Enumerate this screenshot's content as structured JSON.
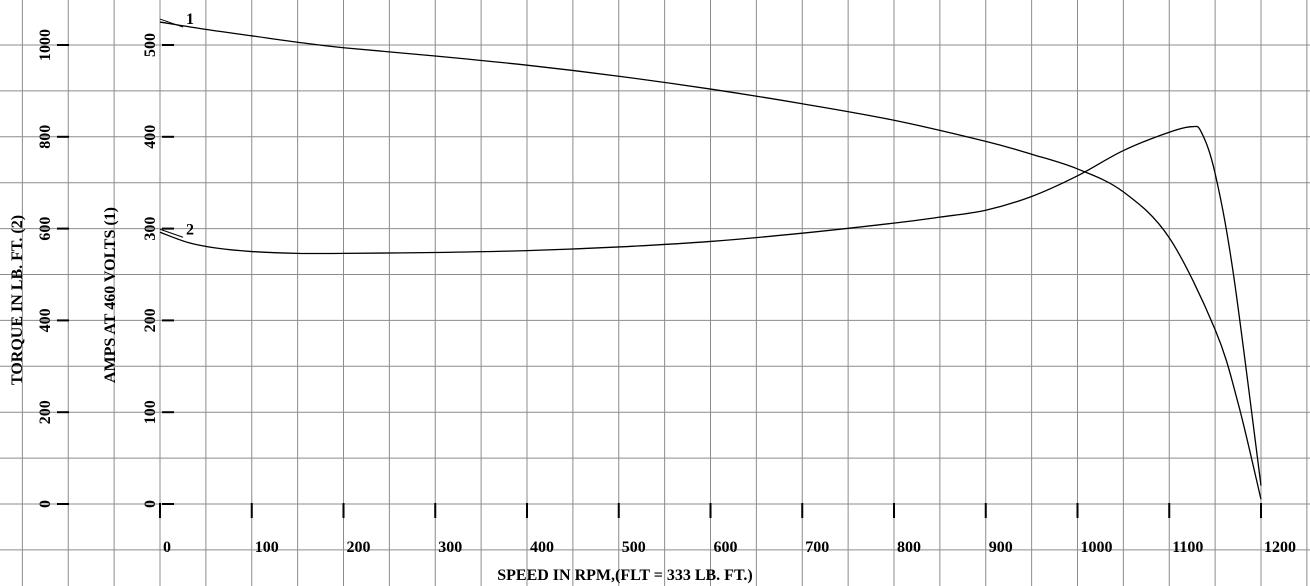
{
  "chart_data": {
    "type": "line",
    "title": "",
    "xlabel": "SPEED IN RPM,(FLT =  333 LB. FT.)",
    "x_ticks": [
      "0",
      "100",
      "200",
      "300",
      "400",
      "500",
      "600",
      "700",
      "800",
      "900",
      "1000",
      "1100",
      "1200"
    ],
    "xlim": [
      0,
      1200
    ],
    "grid": true,
    "axes": [
      {
        "id": "torque",
        "label": "TORQUE IN LB. FT. (2)",
        "ticks": [
          "0",
          "200",
          "400",
          "600",
          "800",
          "1000"
        ],
        "ylim": [
          0,
          1000
        ]
      },
      {
        "id": "amps",
        "label": "AMPS AT  460 VOLTS (1)",
        "ticks": [
          "0",
          "100",
          "200",
          "300",
          "400",
          "500"
        ],
        "ylim": [
          0,
          500
        ]
      }
    ],
    "series": [
      {
        "name": "1",
        "axis": "amps",
        "x": [
          0,
          50,
          100,
          150,
          200,
          300,
          400,
          500,
          600,
          700,
          800,
          900,
          950,
          1000,
          1050,
          1100,
          1150,
          1175,
          1200
        ],
        "y": [
          525,
          517,
          510,
          503,
          497,
          488,
          478,
          466,
          452,
          436,
          418,
          395,
          381,
          365,
          340,
          290,
          190,
          110,
          5
        ]
      },
      {
        "name": "2",
        "axis": "torque",
        "x": [
          0,
          30,
          60,
          100,
          150,
          200,
          300,
          400,
          500,
          600,
          700,
          800,
          850,
          900,
          950,
          1000,
          1050,
          1100,
          1125,
          1135,
          1150,
          1170,
          1200
        ],
        "y": [
          592,
          570,
          558,
          550,
          546,
          546,
          548,
          552,
          560,
          572,
          590,
          612,
          625,
          640,
          670,
          715,
          770,
          810,
          822,
          810,
          720,
          500,
          40
        ]
      }
    ]
  }
}
